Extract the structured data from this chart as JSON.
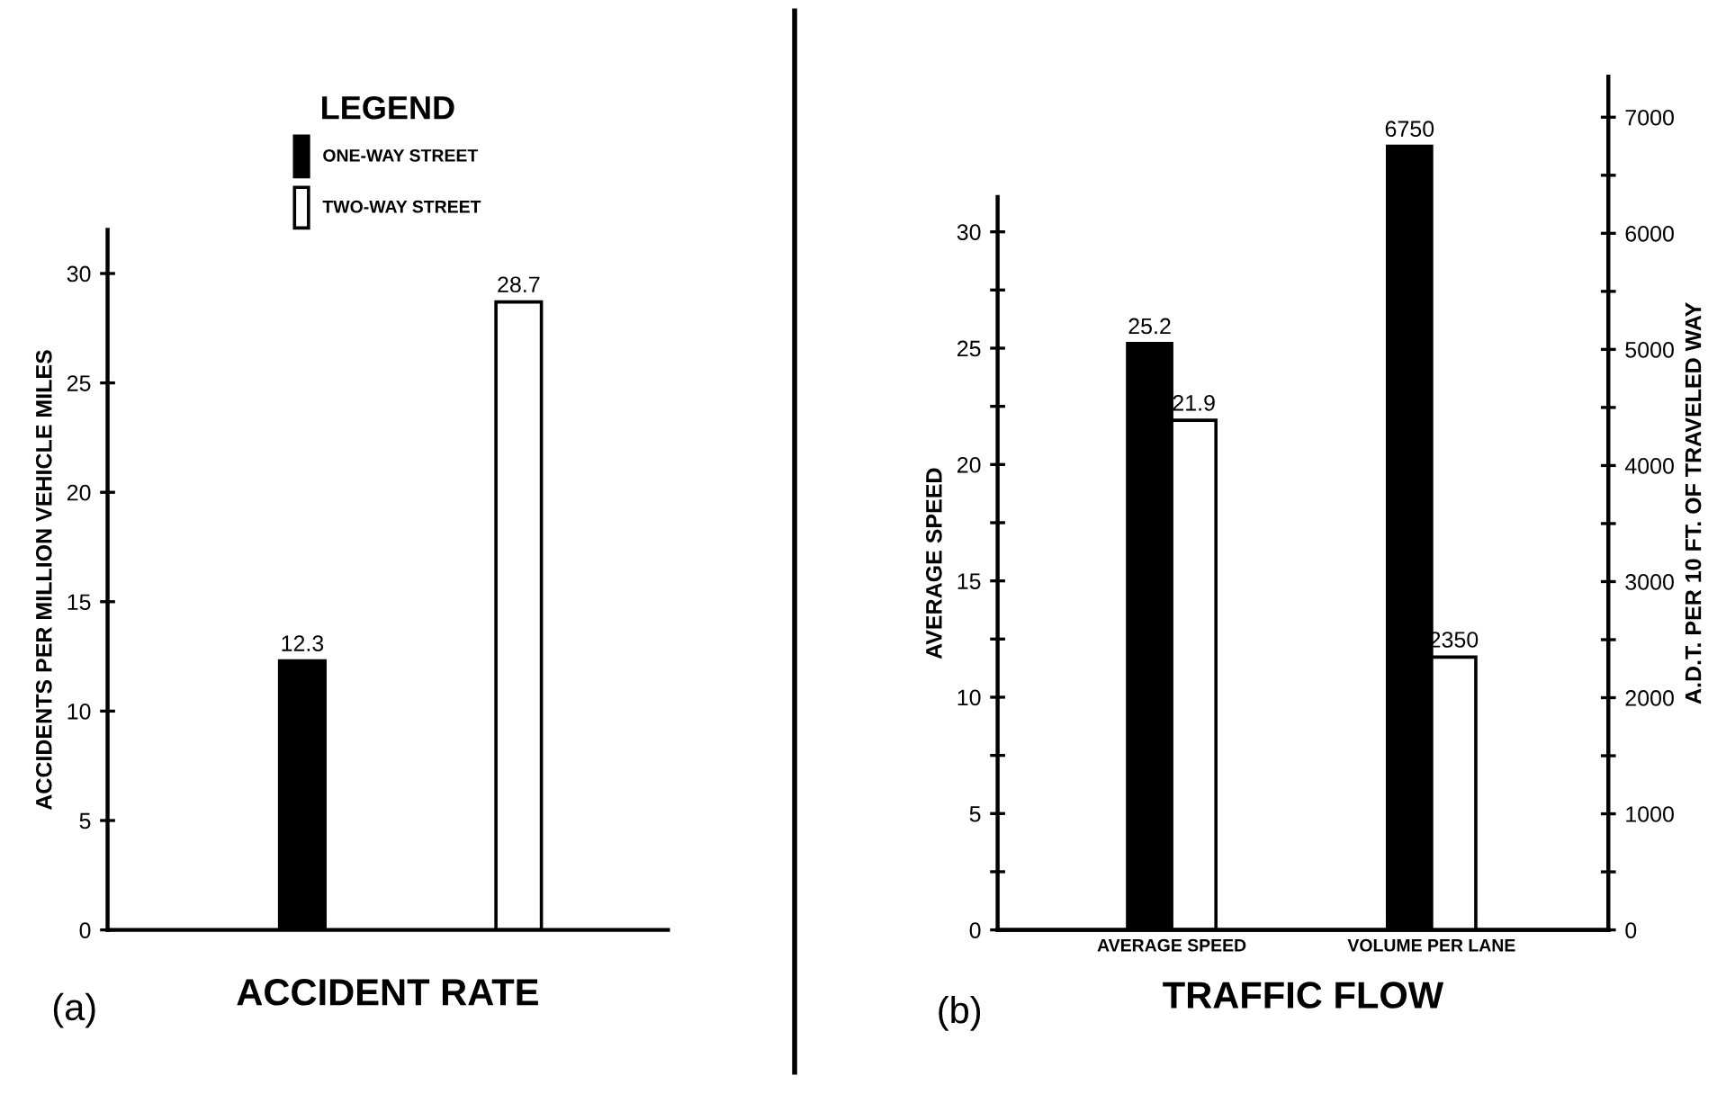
{
  "chart_data": [
    {
      "type": "bar",
      "title": "ACCIDENT RATE",
      "ylabel": "ACCIDENTS PER MILLION VEHICLE MILES",
      "legend_title": "LEGEND",
      "annotations": [
        "(a)"
      ],
      "categories": [
        null,
        null
      ],
      "series": [
        {
          "name": "ONE-WAY STREET",
          "color": "#000000",
          "values": [
            12.3,
            null
          ]
        },
        {
          "name": "TWO-WAY STREET",
          "color": "#ffffff",
          "values": [
            null,
            28.7
          ]
        }
      ],
      "ylim": [
        0,
        32
      ],
      "yticks": [
        0,
        5,
        10,
        15,
        20,
        25,
        30
      ],
      "data_labels": true,
      "legend": "top",
      "grid": false
    },
    {
      "type": "bar",
      "title": "TRAFFIC FLOW",
      "ylabel": "AVERAGE SPEED",
      "y2label": "A.D.T. PER 10 FT. OF TRAVELED WAY",
      "annotations": [
        "(b)"
      ],
      "categories": [
        "AVERAGE SPEED",
        "VOLUME PER LANE"
      ],
      "series": [
        {
          "color": "#000000",
          "values": [
            25.2,
            null
          ]
        },
        {
          "color": "#ffffff",
          "values": [
            21.9,
            null
          ]
        },
        {
          "color": "#000000",
          "values": [
            null,
            6750
          ],
          "axis": "y2"
        },
        {
          "color": "#ffffff",
          "values": [
            null,
            2350
          ],
          "axis": "y2"
        }
      ],
      "ylim": [
        0,
        31.5
      ],
      "yticks": [
        0,
        {
          "value": 2.5,
          "label": null
        },
        5,
        {
          "value": 7.5,
          "label": null
        },
        10,
        {
          "value": 12.5,
          "label": null
        },
        15,
        {
          "value": 17.5,
          "label": null
        },
        20,
        {
          "value": 22.5,
          "label": null
        },
        25,
        {
          "value": 27.5,
          "label": null
        },
        30
      ],
      "y2lim": [
        0,
        7350
      ],
      "y2ticks": [
        0,
        {
          "value": 500,
          "label": null
        },
        1000,
        {
          "value": 1500,
          "label": null
        },
        2000,
        {
          "value": 2500,
          "label": null
        },
        3000,
        {
          "value": 3500,
          "label": null
        },
        4000,
        {
          "value": 4500,
          "label": null
        },
        5000,
        {
          "value": 5500,
          "label": null
        },
        6000,
        {
          "value": 6500,
          "label": null
        },
        7000
      ],
      "data_labels": true,
      "grid": false
    }
  ]
}
